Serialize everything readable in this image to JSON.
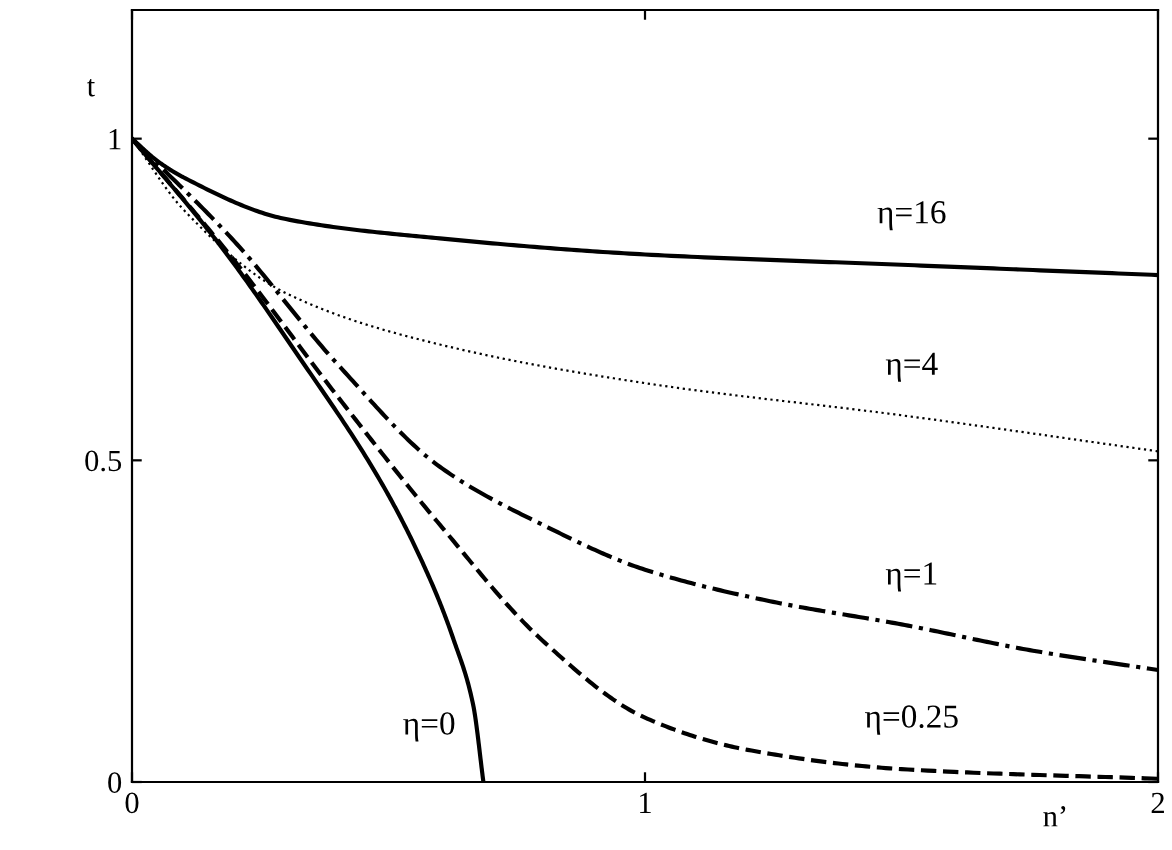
{
  "chart_data": {
    "type": "line",
    "xlabel": "n’",
    "ylabel": "t",
    "xlim": [
      0,
      2
    ],
    "ylim": [
      0,
      1.2
    ],
    "xticks": [
      0,
      1,
      2
    ],
    "yticks": [
      0,
      0.5,
      1
    ],
    "grid": false,
    "legend": false,
    "series": [
      {
        "name": "η=16",
        "color": "#000000",
        "line_style": "solid",
        "x": [
          0,
          0.05,
          0.1,
          0.3,
          0.6,
          1.0,
          1.5,
          2
        ],
        "values": [
          1,
          0.965,
          0.94,
          0.875,
          0.845,
          0.82,
          0.804,
          0.788
        ]
      },
      {
        "name": "η=4",
        "color": "#000000",
        "line_style": "dotted",
        "x": [
          0,
          0.1,
          0.3,
          0.6,
          1.0,
          1.5,
          2
        ],
        "values": [
          1,
          0.89,
          0.76,
          0.68,
          0.62,
          0.57,
          0.514
        ]
      },
      {
        "name": "η=1",
        "color": "#000000",
        "line_style": "dashdot",
        "x": [
          0,
          0.2,
          0.4,
          0.6,
          0.8,
          1.0,
          1.25,
          1.5,
          1.75,
          2
        ],
        "values": [
          1,
          0.84,
          0.65,
          0.49,
          0.4,
          0.33,
          0.28,
          0.245,
          0.205,
          0.174
        ]
      },
      {
        "name": "η=0.25",
        "color": "#000000",
        "line_style": "dashed",
        "x": [
          0,
          0.2,
          0.4,
          0.6,
          0.8,
          1.0,
          1.2,
          1.5,
          2
        ],
        "values": [
          1,
          0.81,
          0.6,
          0.4,
          0.22,
          0.1,
          0.05,
          0.02,
          0.005
        ]
      },
      {
        "name": "η=0",
        "color": "#000000",
        "line_style": "solid",
        "x": [
          0,
          0.172,
          0.315,
          0.497,
          0.587,
          0.627,
          0.665,
          0.685
        ],
        "values": [
          1,
          0.834,
          0.673,
          0.45,
          0.304,
          0.221,
          0.12,
          0
        ]
      }
    ]
  }
}
